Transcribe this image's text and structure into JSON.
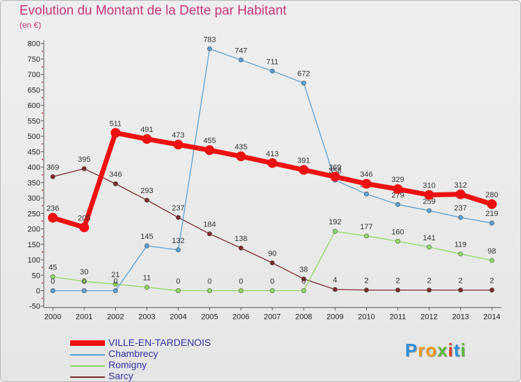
{
  "title": "Evolution du Montant de la Dette par Habitant",
  "subtitle": "(en €)",
  "logo": {
    "text": "Proxiti",
    "letter_colors": [
      "#2f8fd8",
      "#f29a1a",
      "#f29a1a",
      "#5cb83a",
      "#e03b24",
      "#2f8fd8",
      "#5cb83a"
    ]
  },
  "chart_data": {
    "type": "line",
    "title": "Evolution du Montant de la Dette par Habitant",
    "subtitle": "(en €)",
    "x": [
      "2000",
      "2001",
      "2002",
      "2003",
      "2004",
      "2005",
      "2006",
      "2007",
      "2008",
      "2009",
      "2010",
      "2011",
      "2012",
      "2013",
      "2014"
    ],
    "ylim": [
      -50,
      800
    ],
    "yticks": [
      "-50",
      "0",
      "50",
      "100",
      "150",
      "200",
      "250",
      "300",
      "350",
      "400",
      "450",
      "500",
      "550",
      "600",
      "650",
      "700",
      "750",
      "800"
    ],
    "grid": false,
    "legend_position": "bottom-left",
    "series": [
      {
        "name": "Sarcy",
        "color": "#7a2a2a",
        "values": [
          369,
          395,
          346,
          293,
          237,
          184,
          138,
          90,
          38,
          4,
          2,
          2,
          2,
          2,
          2
        ],
        "labels": [
          "369",
          "395",
          "346",
          "293",
          "237",
          "184",
          "138",
          "90",
          "38",
          "4",
          "2",
          "2",
          "2",
          "2",
          "2"
        ]
      },
      {
        "name": "Romigny",
        "color": "#8fd864",
        "values": [
          45,
          30,
          21,
          11,
          0,
          0,
          0,
          0,
          0,
          192,
          177,
          160,
          141,
          119,
          98
        ],
        "labels": [
          "45",
          "30",
          "21",
          "11",
          "0",
          "0",
          "0",
          "0",
          "0",
          "192",
          "177",
          "160",
          "141",
          "119",
          "98"
        ]
      },
      {
        "name": "Chambrecy",
        "color": "#5a9fd4",
        "values": [
          0,
          0,
          0,
          145,
          132,
          783,
          747,
          711,
          672,
          358,
          313,
          279,
          259,
          237,
          219
        ],
        "labels": [
          "0",
          "0",
          "0",
          "145",
          "132",
          "783",
          "747",
          "711",
          "672",
          "358",
          "313",
          "279",
          "259",
          "237",
          "219"
        ]
      },
      {
        "name": "VILLE-EN-TARDENOIS",
        "color": "#ee1111",
        "values": [
          236,
          205,
          511,
          491,
          473,
          455,
          435,
          413,
          391,
          369,
          346,
          329,
          310,
          312,
          280
        ],
        "labels": [
          "236",
          "205",
          "511",
          "491",
          "473",
          "455",
          "435",
          "413",
          "391",
          "369",
          "346",
          "329",
          "310",
          "312",
          "280"
        ]
      }
    ],
    "legend": [
      "VILLE-EN-TARDENOIS",
      "Chambrecy",
      "Romigny",
      "Sarcy"
    ]
  }
}
